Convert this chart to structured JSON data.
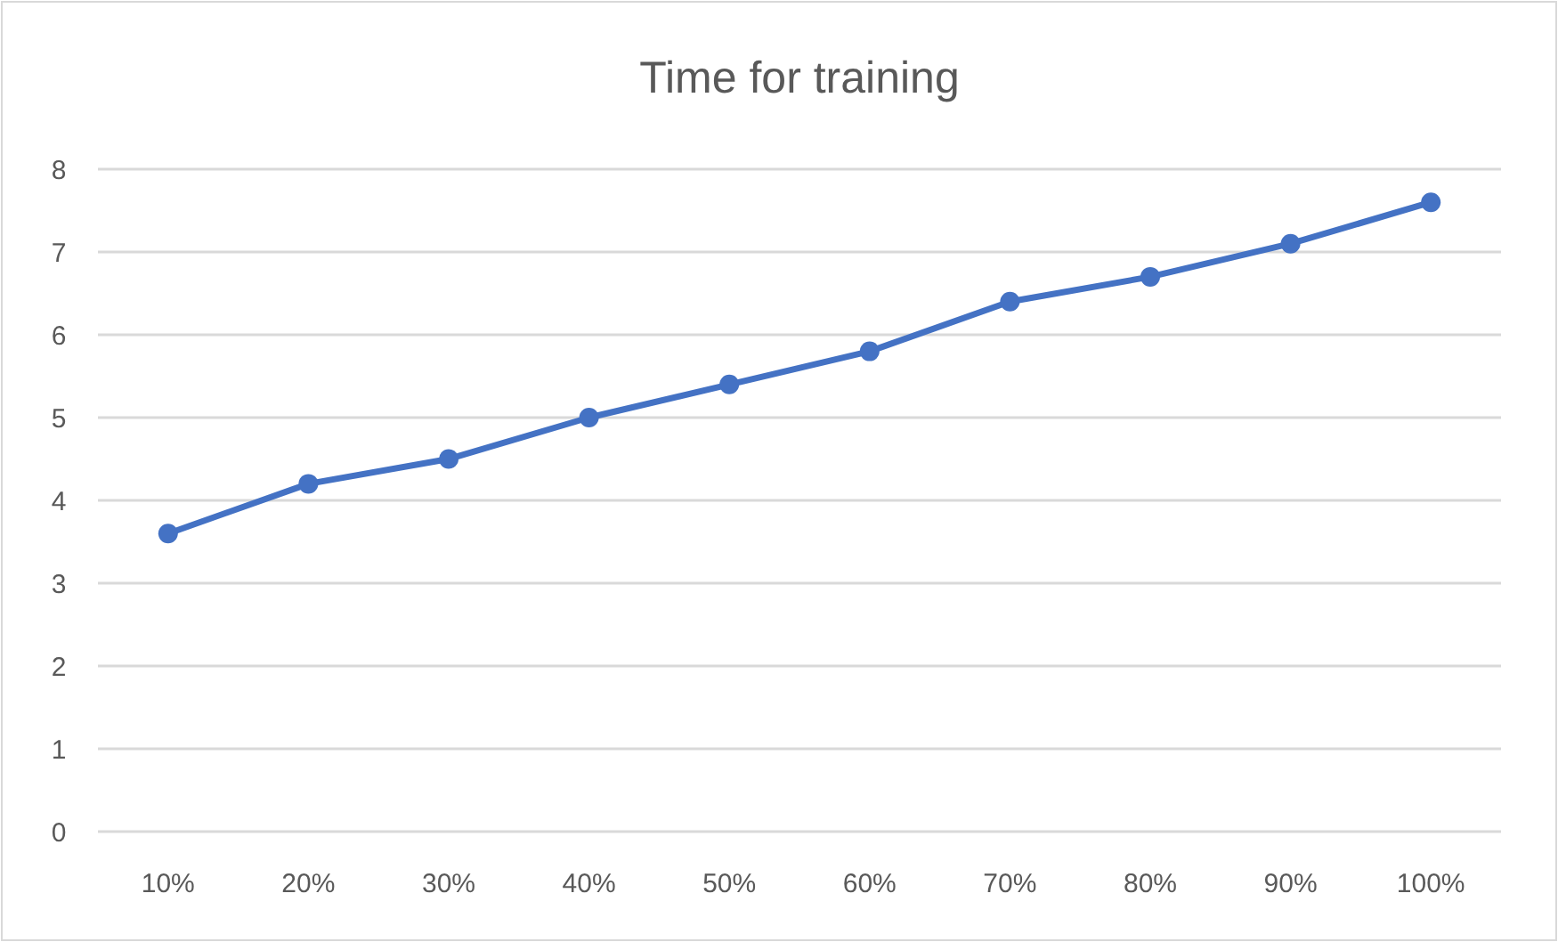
{
  "chart_data": {
    "type": "line",
    "title": "Time for training",
    "categories": [
      "10%",
      "20%",
      "30%",
      "40%",
      "50%",
      "60%",
      "70%",
      "80%",
      "90%",
      "100%"
    ],
    "series": [
      {
        "color": "#4472c4",
        "values": [
          3.6,
          4.2,
          4.5,
          5.0,
          5.4,
          5.8,
          6.4,
          6.7,
          7.1,
          7.6
        ]
      }
    ],
    "ylim": [
      0,
      8
    ],
    "yticks": [
      0,
      1,
      2,
      3,
      4,
      5,
      6,
      7,
      8
    ],
    "grid": "y",
    "marker": "circle"
  }
}
